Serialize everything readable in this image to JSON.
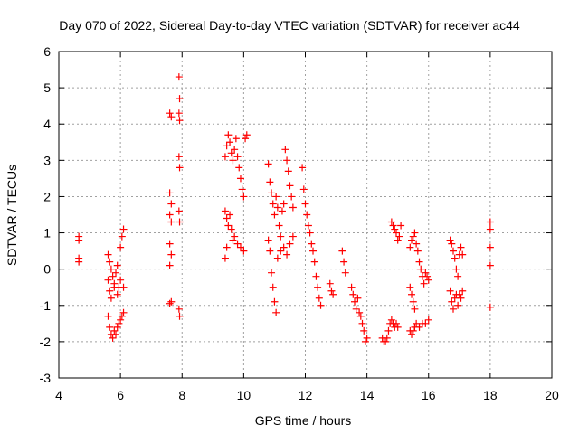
{
  "chart_data": {
    "type": "scatter",
    "title": "Day 070 of 2022, Sidereal Day-to-day VTEC variation (SDTVAR) for receiver ac44",
    "xlabel": "GPS time / hours",
    "ylabel": "SDTVAR / TECUs",
    "xlim": [
      4,
      20
    ],
    "ylim": [
      -3,
      6
    ],
    "xticks": [
      4,
      6,
      8,
      10,
      12,
      14,
      16,
      18,
      20
    ],
    "yticks": [
      -3,
      -2,
      -1,
      0,
      1,
      2,
      3,
      4,
      5,
      6
    ],
    "grid": true,
    "marker": "+",
    "series": [
      {
        "name": "SDTVAR",
        "color": "#ff0000",
        "points": [
          [
            4.65,
            0.9
          ],
          [
            4.65,
            0.8
          ],
          [
            4.65,
            0.3
          ],
          [
            4.65,
            0.2
          ],
          [
            5.6,
            0.4
          ],
          [
            5.65,
            0.2
          ],
          [
            5.7,
            0.0
          ],
          [
            5.75,
            -0.2
          ],
          [
            5.8,
            -0.4
          ],
          [
            5.85,
            -0.1
          ],
          [
            5.9,
            0.1
          ],
          [
            5.95,
            -0.5
          ],
          [
            6.0,
            0.6
          ],
          [
            6.05,
            0.9
          ],
          [
            6.1,
            1.1
          ],
          [
            5.6,
            -0.3
          ],
          [
            5.65,
            -0.6
          ],
          [
            5.7,
            -0.8
          ],
          [
            5.8,
            -0.5
          ],
          [
            5.9,
            -0.7
          ],
          [
            6.0,
            -0.3
          ],
          [
            6.1,
            -0.5
          ],
          [
            5.6,
            -1.3
          ],
          [
            5.65,
            -1.6
          ],
          [
            5.7,
            -1.8
          ],
          [
            5.75,
            -1.9
          ],
          [
            5.8,
            -1.7
          ],
          [
            5.85,
            -1.8
          ],
          [
            5.9,
            -1.6
          ],
          [
            5.95,
            -1.5
          ],
          [
            6.0,
            -1.4
          ],
          [
            6.05,
            -1.3
          ],
          [
            6.1,
            -1.2
          ],
          [
            7.6,
            4.3
          ],
          [
            7.65,
            4.2
          ],
          [
            7.6,
            2.1
          ],
          [
            7.65,
            1.8
          ],
          [
            7.6,
            1.5
          ],
          [
            7.65,
            1.3
          ],
          [
            7.6,
            0.7
          ],
          [
            7.65,
            0.4
          ],
          [
            7.6,
            0.1
          ],
          [
            7.65,
            -0.9
          ],
          [
            7.6,
            -0.95
          ],
          [
            7.9,
            5.3
          ],
          [
            7.92,
            4.7
          ],
          [
            7.9,
            4.3
          ],
          [
            7.92,
            4.1
          ],
          [
            7.9,
            3.1
          ],
          [
            7.92,
            2.8
          ],
          [
            7.9,
            1.6
          ],
          [
            7.92,
            1.3
          ],
          [
            7.9,
            -1.1
          ],
          [
            7.92,
            -1.3
          ],
          [
            9.4,
            3.1
          ],
          [
            9.45,
            3.4
          ],
          [
            9.5,
            3.7
          ],
          [
            9.55,
            3.5
          ],
          [
            9.6,
            3.2
          ],
          [
            9.65,
            3.0
          ],
          [
            9.7,
            3.3
          ],
          [
            9.75,
            3.6
          ],
          [
            9.8,
            3.1
          ],
          [
            9.85,
            2.8
          ],
          [
            9.9,
            2.5
          ],
          [
            9.95,
            2.2
          ],
          [
            10.0,
            2.0
          ],
          [
            10.05,
            3.6
          ],
          [
            10.1,
            3.7
          ],
          [
            9.4,
            1.6
          ],
          [
            9.45,
            1.4
          ],
          [
            9.5,
            1.2
          ],
          [
            9.55,
            1.5
          ],
          [
            9.6,
            1.1
          ],
          [
            9.65,
            0.8
          ],
          [
            9.7,
            0.9
          ],
          [
            9.8,
            0.7
          ],
          [
            9.9,
            0.6
          ],
          [
            10.0,
            0.5
          ],
          [
            9.4,
            0.3
          ],
          [
            9.45,
            0.6
          ],
          [
            10.8,
            2.9
          ],
          [
            10.85,
            2.4
          ],
          [
            10.9,
            2.1
          ],
          [
            10.95,
            1.8
          ],
          [
            11.0,
            1.5
          ],
          [
            11.05,
            2.0
          ],
          [
            11.1,
            1.7
          ],
          [
            11.15,
            1.2
          ],
          [
            11.2,
            0.9
          ],
          [
            11.25,
            1.6
          ],
          [
            11.3,
            1.8
          ],
          [
            11.35,
            3.3
          ],
          [
            11.4,
            3.0
          ],
          [
            11.45,
            2.7
          ],
          [
            11.5,
            2.3
          ],
          [
            11.55,
            2.0
          ],
          [
            11.6,
            1.7
          ],
          [
            10.8,
            0.8
          ],
          [
            10.85,
            0.5
          ],
          [
            10.9,
            -0.1
          ],
          [
            10.95,
            -0.5
          ],
          [
            11.0,
            -0.9
          ],
          [
            11.05,
            -1.2
          ],
          [
            11.1,
            0.3
          ],
          [
            11.2,
            0.5
          ],
          [
            11.3,
            0.6
          ],
          [
            11.4,
            0.4
          ],
          [
            11.5,
            0.7
          ],
          [
            11.6,
            0.9
          ],
          [
            11.9,
            2.8
          ],
          [
            11.95,
            2.2
          ],
          [
            12.0,
            1.8
          ],
          [
            12.05,
            1.5
          ],
          [
            12.1,
            1.2
          ],
          [
            12.15,
            1.0
          ],
          [
            12.2,
            0.7
          ],
          [
            12.25,
            0.5
          ],
          [
            12.3,
            0.2
          ],
          [
            12.35,
            -0.2
          ],
          [
            12.4,
            -0.5
          ],
          [
            12.45,
            -0.8
          ],
          [
            12.5,
            -1.0
          ],
          [
            12.8,
            -0.4
          ],
          [
            12.85,
            -0.6
          ],
          [
            12.9,
            -0.7
          ],
          [
            13.2,
            0.5
          ],
          [
            13.25,
            0.2
          ],
          [
            13.3,
            -0.1
          ],
          [
            13.5,
            -0.5
          ],
          [
            13.55,
            -0.7
          ],
          [
            13.6,
            -0.9
          ],
          [
            13.65,
            -1.1
          ],
          [
            13.7,
            -0.8
          ],
          [
            13.75,
            -1.2
          ],
          [
            13.8,
            -1.3
          ],
          [
            13.85,
            -1.5
          ],
          [
            13.9,
            -1.7
          ],
          [
            13.95,
            -2.0
          ],
          [
            14.0,
            -1.9
          ],
          [
            14.5,
            -1.9
          ],
          [
            14.55,
            -2.0
          ],
          [
            14.6,
            -2.0
          ],
          [
            14.65,
            -1.9
          ],
          [
            14.7,
            -1.7
          ],
          [
            14.75,
            -1.5
          ],
          [
            14.8,
            -1.4
          ],
          [
            14.85,
            -1.5
          ],
          [
            14.9,
            -1.6
          ],
          [
            14.95,
            -1.5
          ],
          [
            15.0,
            -1.6
          ],
          [
            14.8,
            1.3
          ],
          [
            14.85,
            1.2
          ],
          [
            14.9,
            1.1
          ],
          [
            14.95,
            1.0
          ],
          [
            15.0,
            0.8
          ],
          [
            15.05,
            0.9
          ],
          [
            15.1,
            1.2
          ],
          [
            15.4,
            0.6
          ],
          [
            15.45,
            0.8
          ],
          [
            15.5,
            0.9
          ],
          [
            15.55,
            1.0
          ],
          [
            15.6,
            0.7
          ],
          [
            15.65,
            0.5
          ],
          [
            15.7,
            0.2
          ],
          [
            15.75,
            0.0
          ],
          [
            15.8,
            -0.2
          ],
          [
            15.85,
            -0.4
          ],
          [
            15.9,
            -0.1
          ],
          [
            15.95,
            -0.2
          ],
          [
            16.0,
            -0.3
          ],
          [
            15.4,
            -0.5
          ],
          [
            15.45,
            -0.7
          ],
          [
            15.5,
            -0.9
          ],
          [
            15.55,
            -1.1
          ],
          [
            15.4,
            -1.7
          ],
          [
            15.45,
            -1.8
          ],
          [
            15.5,
            -1.7
          ],
          [
            15.55,
            -1.6
          ],
          [
            15.6,
            -1.5
          ],
          [
            15.7,
            -1.6
          ],
          [
            15.8,
            -1.5
          ],
          [
            15.9,
            -1.5
          ],
          [
            16.0,
            -1.4
          ],
          [
            16.7,
            0.8
          ],
          [
            16.75,
            0.7
          ],
          [
            16.8,
            0.5
          ],
          [
            16.85,
            0.3
          ],
          [
            16.9,
            0.0
          ],
          [
            16.95,
            -0.2
          ],
          [
            17.0,
            0.4
          ],
          [
            17.05,
            0.6
          ],
          [
            17.1,
            0.4
          ],
          [
            16.7,
            -0.6
          ],
          [
            16.75,
            -0.9
          ],
          [
            16.8,
            -1.1
          ],
          [
            16.85,
            -0.8
          ],
          [
            16.9,
            -0.7
          ],
          [
            16.95,
            -1.0
          ],
          [
            17.0,
            -0.7
          ],
          [
            17.05,
            -0.8
          ],
          [
            17.1,
            -0.6
          ],
          [
            18.0,
            1.3
          ],
          [
            18.0,
            1.1
          ],
          [
            18.0,
            0.6
          ],
          [
            18.0,
            0.1
          ],
          [
            18.0,
            -1.05
          ]
        ]
      }
    ]
  }
}
